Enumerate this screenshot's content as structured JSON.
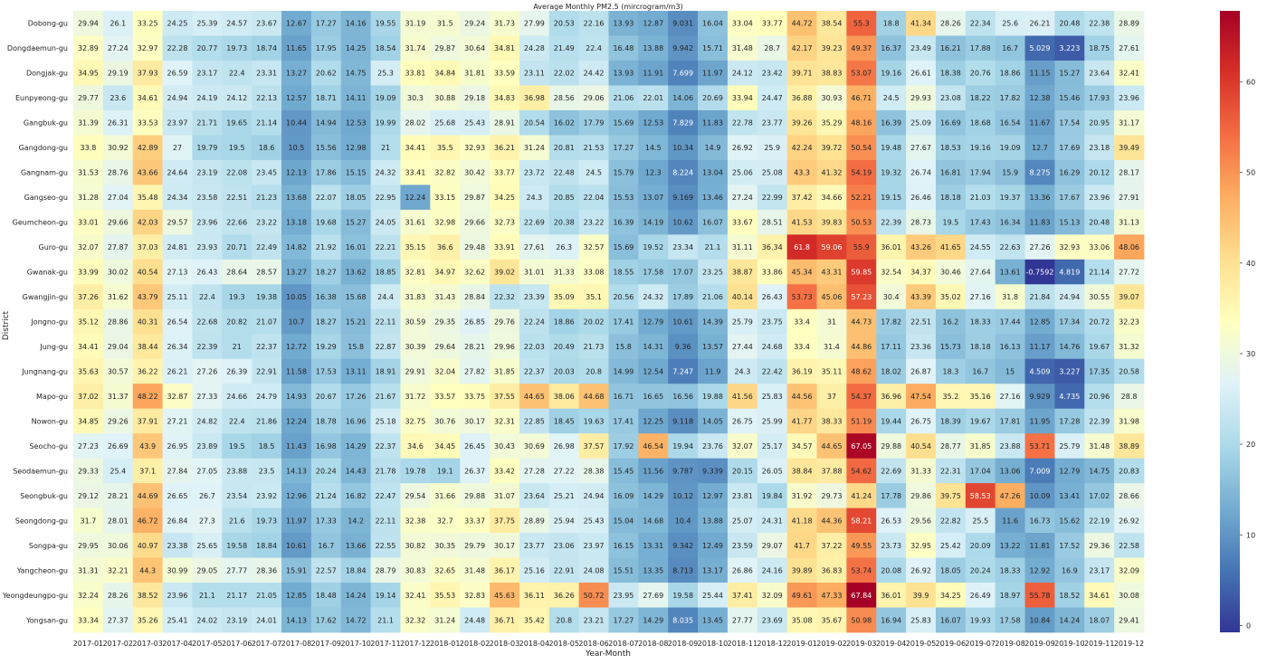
{
  "chart_data": {
    "type": "heatmap",
    "title": "Average Monthly PM2.5 (mircrogram/m3)",
    "xlabel": "Year-Month",
    "ylabel": "District",
    "x": [
      "2017-01",
      "2017-02",
      "2017-03",
      "2017-04",
      "2017-05",
      "2017-06",
      "2017-07",
      "2017-08",
      "2017-09",
      "2017-10",
      "2017-11",
      "2017-12",
      "2018-01",
      "2018-02",
      "2018-03",
      "2018-04",
      "2018-05",
      "2018-06",
      "2018-07",
      "2018-08",
      "2018-09",
      "2018-10",
      "2018-11",
      "2018-12",
      "2019-01",
      "2019-02",
      "2019-03",
      "2019-04",
      "2019-05",
      "2019-06",
      "2019-07",
      "2019-08",
      "2019-09",
      "2019-10",
      "2019-11",
      "2019-12"
    ],
    "y": [
      "Dobong-gu",
      "Dongdaemun-gu",
      "Dongjak-gu",
      "Eunpyeong-gu",
      "Gangbuk-gu",
      "Gangdong-gu",
      "Gangnam-gu",
      "Gangseo-gu",
      "Geumcheon-gu",
      "Guro-gu",
      "Gwanak-gu",
      "Gwangjin-gu",
      "Jongno-gu",
      "Jung-gu",
      "Jungnang-gu",
      "Mapo-gu",
      "Nowon-gu",
      "Seocho-gu",
      "Seodaemun-gu",
      "Seongbuk-gu",
      "Seongdong-gu",
      "Songpa-gu",
      "Yangcheon-gu",
      "Yeongdeungpo-gu",
      "Yongsan-gu"
    ],
    "values": [
      [
        "29.94",
        "26.1",
        "33.25",
        "24.25",
        "25.39",
        "24.57",
        "23.67",
        "12.67",
        "17.27",
        "14.16",
        "19.55",
        "31.19",
        "31.5",
        "29.24",
        "31.73",
        "27.99",
        "20.53",
        "22.16",
        "13.93",
        "12.87",
        "9.031",
        "16.04",
        "33.04",
        "33.77",
        "44.72",
        "38.54",
        "55.3",
        "18.8",
        "41.34",
        "28.26",
        "22.34",
        "25.6",
        "26.21",
        "20.48",
        "22.38",
        "28.89"
      ],
      [
        "32.89",
        "27.24",
        "32.97",
        "22.28",
        "20.77",
        "19.73",
        "18.74",
        "11.65",
        "17.95",
        "14.25",
        "18.54",
        "31.74",
        "29.87",
        "30.64",
        "34.81",
        "24.28",
        "21.49",
        "22.4",
        "16.48",
        "13.88",
        "9.942",
        "15.71",
        "31.48",
        "28.7",
        "42.17",
        "39.23",
        "49.37",
        "16.37",
        "23.49",
        "16.21",
        "17.88",
        "16.7",
        "5.029",
        "3.223",
        "18.75",
        "27.61"
      ],
      [
        "34.95",
        "29.19",
        "37.93",
        "26.59",
        "23.17",
        "22.4",
        "23.31",
        "13.27",
        "20.62",
        "14.75",
        "25.3",
        "33.81",
        "34.84",
        "31.81",
        "33.59",
        "23.11",
        "22.02",
        "24.42",
        "13.93",
        "11.91",
        "7.699",
        "11.97",
        "24.12",
        "23.42",
        "39.71",
        "38.83",
        "53.07",
        "19.16",
        "26.61",
        "18.38",
        "20.76",
        "18.86",
        "11.15",
        "15.27",
        "23.64",
        "32.41"
      ],
      [
        "29.77",
        "23.6",
        "34.61",
        "24.94",
        "24.19",
        "24.12",
        "22.13",
        "12.57",
        "18.71",
        "14.11",
        "19.09",
        "30.3",
        "30.88",
        "29.18",
        "34.83",
        "36.98",
        "28.56",
        "29.06",
        "21.06",
        "22.01",
        "14.06",
        "20.69",
        "33.94",
        "24.47",
        "36.88",
        "30.93",
        "46.71",
        "24.5",
        "29.93",
        "23.08",
        "18.22",
        "17.82",
        "12.38",
        "15.46",
        "17.93",
        "23.96"
      ],
      [
        "31.39",
        "26.31",
        "33.53",
        "23.97",
        "21.71",
        "19.65",
        "21.14",
        "10.44",
        "14.94",
        "12.53",
        "19.99",
        "28.02",
        "25.68",
        "25.43",
        "28.91",
        "20.54",
        "16.02",
        "17.79",
        "15.69",
        "12.53",
        "7.829",
        "11.83",
        "22.78",
        "23.77",
        "39.26",
        "35.29",
        "48.16",
        "16.39",
        "25.09",
        "16.69",
        "18.68",
        "16.54",
        "11.67",
        "17.54",
        "20.95",
        "31.17"
      ],
      [
        "33.8",
        "30.92",
        "42.89",
        "27",
        "19.79",
        "19.5",
        "18.6",
        "10.5",
        "15.56",
        "12.98",
        "21",
        "34.41",
        "35.5",
        "32.93",
        "36.21",
        "31.24",
        "20.81",
        "21.53",
        "17.27",
        "14.5",
        "10.34",
        "14.9",
        "26.92",
        "25.9",
        "42.24",
        "39.72",
        "50.54",
        "19.48",
        "27.67",
        "18.53",
        "19.16",
        "19.09",
        "12.7",
        "17.69",
        "23.18",
        "39.49"
      ],
      [
        "31.53",
        "28.76",
        "43.66",
        "24.64",
        "23.19",
        "22.08",
        "23.45",
        "12.13",
        "17.86",
        "15.15",
        "24.32",
        "33.41",
        "32.82",
        "30.42",
        "33.77",
        "23.72",
        "22.48",
        "24.5",
        "15.79",
        "12.3",
        "8.224",
        "13.04",
        "25.06",
        "25.08",
        "43.3",
        "41.32",
        "54.19",
        "19.32",
        "26.74",
        "16.81",
        "17.94",
        "15.9",
        "8.275",
        "16.29",
        "20.12",
        "28.17"
      ],
      [
        "31.28",
        "27.04",
        "35.48",
        "24.34",
        "23.58",
        "22.51",
        "21.23",
        "13.68",
        "22.07",
        "18.05",
        "22.95",
        "12.24",
        "33.15",
        "29.87",
        "34.25",
        "24.3",
        "20.85",
        "22.04",
        "15.53",
        "13.07",
        "9.169",
        "13.46",
        "27.24",
        "22.99",
        "37.42",
        "34.66",
        "52.21",
        "19.15",
        "26.46",
        "18.18",
        "21.03",
        "19.37",
        "13.36",
        "17.67",
        "23.96",
        "27.91"
      ],
      [
        "33.01",
        "29.66",
        "42.03",
        "29.57",
        "23.96",
        "22.66",
        "23.22",
        "13.18",
        "19.68",
        "15.27",
        "24.05",
        "31.61",
        "32.98",
        "29.66",
        "32.73",
        "22.69",
        "20.38",
        "23.22",
        "16.39",
        "14.19",
        "10.62",
        "16.07",
        "33.67",
        "28.51",
        "41.53",
        "39.83",
        "50.53",
        "22.39",
        "28.73",
        "19.5",
        "17.43",
        "16.34",
        "11.83",
        "15.13",
        "20.48",
        "31.13"
      ],
      [
        "32.07",
        "27.87",
        "37.03",
        "24.81",
        "23.93",
        "20.71",
        "22.49",
        "14.82",
        "21.92",
        "16.01",
        "22.21",
        "35.15",
        "36.6",
        "29.48",
        "33.91",
        "27.61",
        "26.3",
        "32.57",
        "15.69",
        "19.52",
        "23.34",
        "21.1",
        "31.11",
        "36.34",
        "61.8",
        "59.06",
        "55.9",
        "36.01",
        "43.26",
        "41.65",
        "24.55",
        "22.63",
        "27.26",
        "32.93",
        "33.06",
        "48.06"
      ],
      [
        "33.99",
        "30.02",
        "40.54",
        "27.13",
        "26.43",
        "28.64",
        "28.57",
        "13.27",
        "18.27",
        "13.62",
        "18.85",
        "32.81",
        "34.97",
        "32.62",
        "39.02",
        "31.01",
        "31.33",
        "33.08",
        "18.55",
        "17.58",
        "17.07",
        "23.25",
        "38.87",
        "33.86",
        "45.34",
        "43.31",
        "59.85",
        "32.54",
        "34.37",
        "30.46",
        "27.64",
        "13.61",
        "-0.7592",
        "4.819",
        "21.14",
        "27.72"
      ],
      [
        "37.26",
        "31.62",
        "43.79",
        "25.11",
        "22.4",
        "19.3",
        "19.38",
        "10.05",
        "16.38",
        "15.68",
        "24.4",
        "31.83",
        "31.43",
        "28.84",
        "22.32",
        "23.39",
        "35.09",
        "35.1",
        "20.56",
        "24.32",
        "17.89",
        "21.06",
        "40.14",
        "26.43",
        "53.73",
        "45.06",
        "57.23",
        "30.4",
        "43.39",
        "35.02",
        "27.16",
        "31.8",
        "21.84",
        "24.94",
        "30.55",
        "39.07"
      ],
      [
        "35.12",
        "28.86",
        "40.31",
        "26.54",
        "22.68",
        "20.82",
        "21.07",
        "10.7",
        "18.27",
        "15.21",
        "22.11",
        "30.59",
        "29.35",
        "26.85",
        "29.76",
        "22.24",
        "18.86",
        "20.02",
        "17.41",
        "12.79",
        "10.61",
        "14.39",
        "25.79",
        "23.75",
        "33.4",
        "31",
        "44.73",
        "17.82",
        "22.51",
        "16.2",
        "18.33",
        "17.44",
        "12.85",
        "17.34",
        "20.72",
        "32.23"
      ],
      [
        "34.41",
        "29.04",
        "38.44",
        "26.34",
        "22.39",
        "21",
        "22.37",
        "12.72",
        "19.29",
        "15.8",
        "22.87",
        "30.39",
        "29.64",
        "28.21",
        "29.96",
        "22.03",
        "20.49",
        "21.73",
        "15.8",
        "14.31",
        "9.36",
        "13.57",
        "27.44",
        "24.68",
        "33.4",
        "31.4",
        "44.86",
        "17.11",
        "23.36",
        "15.73",
        "18.18",
        "16.13",
        "11.17",
        "14.76",
        "19.67",
        "31.32"
      ],
      [
        "35.63",
        "30.57",
        "36.22",
        "26.21",
        "27.26",
        "26.39",
        "22.91",
        "11.58",
        "17.53",
        "13.11",
        "18.91",
        "29.91",
        "32.04",
        "27.82",
        "31.85",
        "22.37",
        "20.03",
        "20.8",
        "14.99",
        "12.54",
        "7.247",
        "11.9",
        "24.3",
        "22.42",
        "36.19",
        "35.11",
        "48.62",
        "18.02",
        "26.87",
        "18.3",
        "16.7",
        "15",
        "4.509",
        "3.227",
        "17.35",
        "20.58"
      ],
      [
        "37.02",
        "31.37",
        "48.22",
        "32.87",
        "27.33",
        "24.66",
        "24.79",
        "14.93",
        "20.67",
        "17.26",
        "21.67",
        "31.72",
        "33.57",
        "33.75",
        "37.55",
        "44.65",
        "38.06",
        "44.68",
        "16.71",
        "16.65",
        "16.56",
        "19.88",
        "41.56",
        "25.83",
        "44.56",
        "37",
        "54.37",
        "36.96",
        "47.54",
        "35.2",
        "35.16",
        "27.16",
        "9.929",
        "4.735",
        "20.96",
        "28.8"
      ],
      [
        "34.85",
        "29.26",
        "37.91",
        "27.21",
        "24.82",
        "22.4",
        "21.86",
        "12.24",
        "18.78",
        "16.96",
        "25.18",
        "32.75",
        "30.76",
        "30.17",
        "32.31",
        "22.85",
        "18.45",
        "19.63",
        "17.41",
        "12.25",
        "9.118",
        "14.05",
        "26.75",
        "25.99",
        "41.77",
        "38.33",
        "51.19",
        "19.44",
        "26.75",
        "18.39",
        "19.67",
        "17.81",
        "11.95",
        "17.28",
        "22.39",
        "31.98"
      ],
      [
        "27.23",
        "26.69",
        "43.9",
        "26.95",
        "23.89",
        "19.5",
        "18.5",
        "11.43",
        "16.98",
        "14.29",
        "22.37",
        "34.6",
        "34.45",
        "26.45",
        "30.43",
        "30.69",
        "26.98",
        "37.57",
        "17.92",
        "46.54",
        "19.94",
        "23.76",
        "32.07",
        "25.17",
        "34.57",
        "44.65",
        "67.05",
        "29.88",
        "40.54",
        "28.77",
        "31.85",
        "23.88",
        "53.71",
        "25.79",
        "31.48",
        "38.89"
      ],
      [
        "29.33",
        "25.4",
        "37.1",
        "27.84",
        "27.05",
        "23.88",
        "23.5",
        "14.13",
        "20.24",
        "14.43",
        "21.78",
        "19.78",
        "19.1",
        "26.37",
        "33.42",
        "27.28",
        "27.22",
        "28.38",
        "15.45",
        "11.56",
        "9.787",
        "9.339",
        "20.15",
        "26.05",
        "38.84",
        "37.88",
        "54.62",
        "22.69",
        "31.33",
        "22.31",
        "17.04",
        "13.06",
        "7.009",
        "12.79",
        "14.75",
        "20.83"
      ],
      [
        "29.12",
        "28.21",
        "44.69",
        "26.65",
        "26.7",
        "23.54",
        "23.92",
        "12.96",
        "21.24",
        "16.82",
        "22.47",
        "29.54",
        "31.66",
        "29.88",
        "31.07",
        "23.64",
        "25.21",
        "24.94",
        "16.09",
        "14.29",
        "10.12",
        "12.97",
        "23.81",
        "19.84",
        "31.92",
        "29.73",
        "41.24",
        "17.78",
        "29.86",
        "39.75",
        "58.53",
        "47.26",
        "10.09",
        "13.41",
        "17.02",
        "28.66"
      ],
      [
        "31.7",
        "28.01",
        "46.72",
        "26.84",
        "27.3",
        "21.6",
        "19.73",
        "11.97",
        "17.33",
        "14.2",
        "22.11",
        "32.38",
        "32.7",
        "33.37",
        "37.75",
        "28.89",
        "25.94",
        "25.43",
        "15.04",
        "14.68",
        "10.4",
        "13.88",
        "25.07",
        "24.31",
        "41.18",
        "44.36",
        "58.21",
        "26.53",
        "29.56",
        "22.82",
        "25.5",
        "11.6",
        "16.73",
        "15.62",
        "22.19",
        "26.92"
      ],
      [
        "29.95",
        "30.06",
        "40.97",
        "23.38",
        "25.65",
        "19.58",
        "18.84",
        "10.61",
        "16.7",
        "13.66",
        "22.55",
        "30.82",
        "30.35",
        "29.79",
        "30.17",
        "23.77",
        "23.06",
        "23.97",
        "16.15",
        "13.31",
        "9.342",
        "12.49",
        "23.59",
        "29.07",
        "41.7",
        "37.22",
        "49.55",
        "23.73",
        "32.95",
        "25.42",
        "20.09",
        "13.22",
        "11.81",
        "17.52",
        "29.36",
        "22.58"
      ],
      [
        "31.31",
        "32.21",
        "44.3",
        "30.99",
        "29.05",
        "27.77",
        "28.36",
        "15.91",
        "22.57",
        "18.84",
        "28.79",
        "30.83",
        "32.65",
        "31.48",
        "36.17",
        "25.16",
        "22.91",
        "24.08",
        "15.51",
        "13.35",
        "8.713",
        "13.17",
        "26.86",
        "24.16",
        "39.89",
        "36.83",
        "53.74",
        "20.08",
        "26.92",
        "18.05",
        "20.24",
        "18.33",
        "12.92",
        "16.9",
        "23.17",
        "32.09"
      ],
      [
        "32.24",
        "28.26",
        "38.52",
        "23.96",
        "21.1",
        "21.17",
        "21.05",
        "12.85",
        "18.48",
        "14.24",
        "19.14",
        "32.41",
        "35.53",
        "32.83",
        "45.63",
        "36.11",
        "36.26",
        "50.72",
        "23.95",
        "27.69",
        "19.58",
        "25.44",
        "37.41",
        "32.09",
        "49.61",
        "47.33",
        "67.84",
        "36.01",
        "39.9",
        "34.25",
        "26.49",
        "18.97",
        "55.78",
        "18.52",
        "34.61",
        "30.08"
      ],
      [
        "33.34",
        "27.37",
        "35.26",
        "25.41",
        "24.02",
        "23.19",
        "24.01",
        "14.13",
        "17.62",
        "14.72",
        "21.1",
        "32.32",
        "31.24",
        "24.48",
        "36.71",
        "35.42",
        "20.8",
        "23.21",
        "17.27",
        "14.29",
        "8.035",
        "13.45",
        "27.77",
        "23.69",
        "35.08",
        "35.67",
        "50.98",
        "16.94",
        "25.83",
        "16.07",
        "19.93",
        "17.58",
        "10.84",
        "14.24",
        "18.07",
        "29.41"
      ]
    ],
    "colorscale": "RdYlBu_r",
    "colorbar_range": [
      -0.7592,
      67.84
    ],
    "colorbar_ticks": [
      "0",
      "10",
      "20",
      "30",
      "40",
      "50",
      "60"
    ],
    "legend": "colorbar-right",
    "grid": false
  }
}
